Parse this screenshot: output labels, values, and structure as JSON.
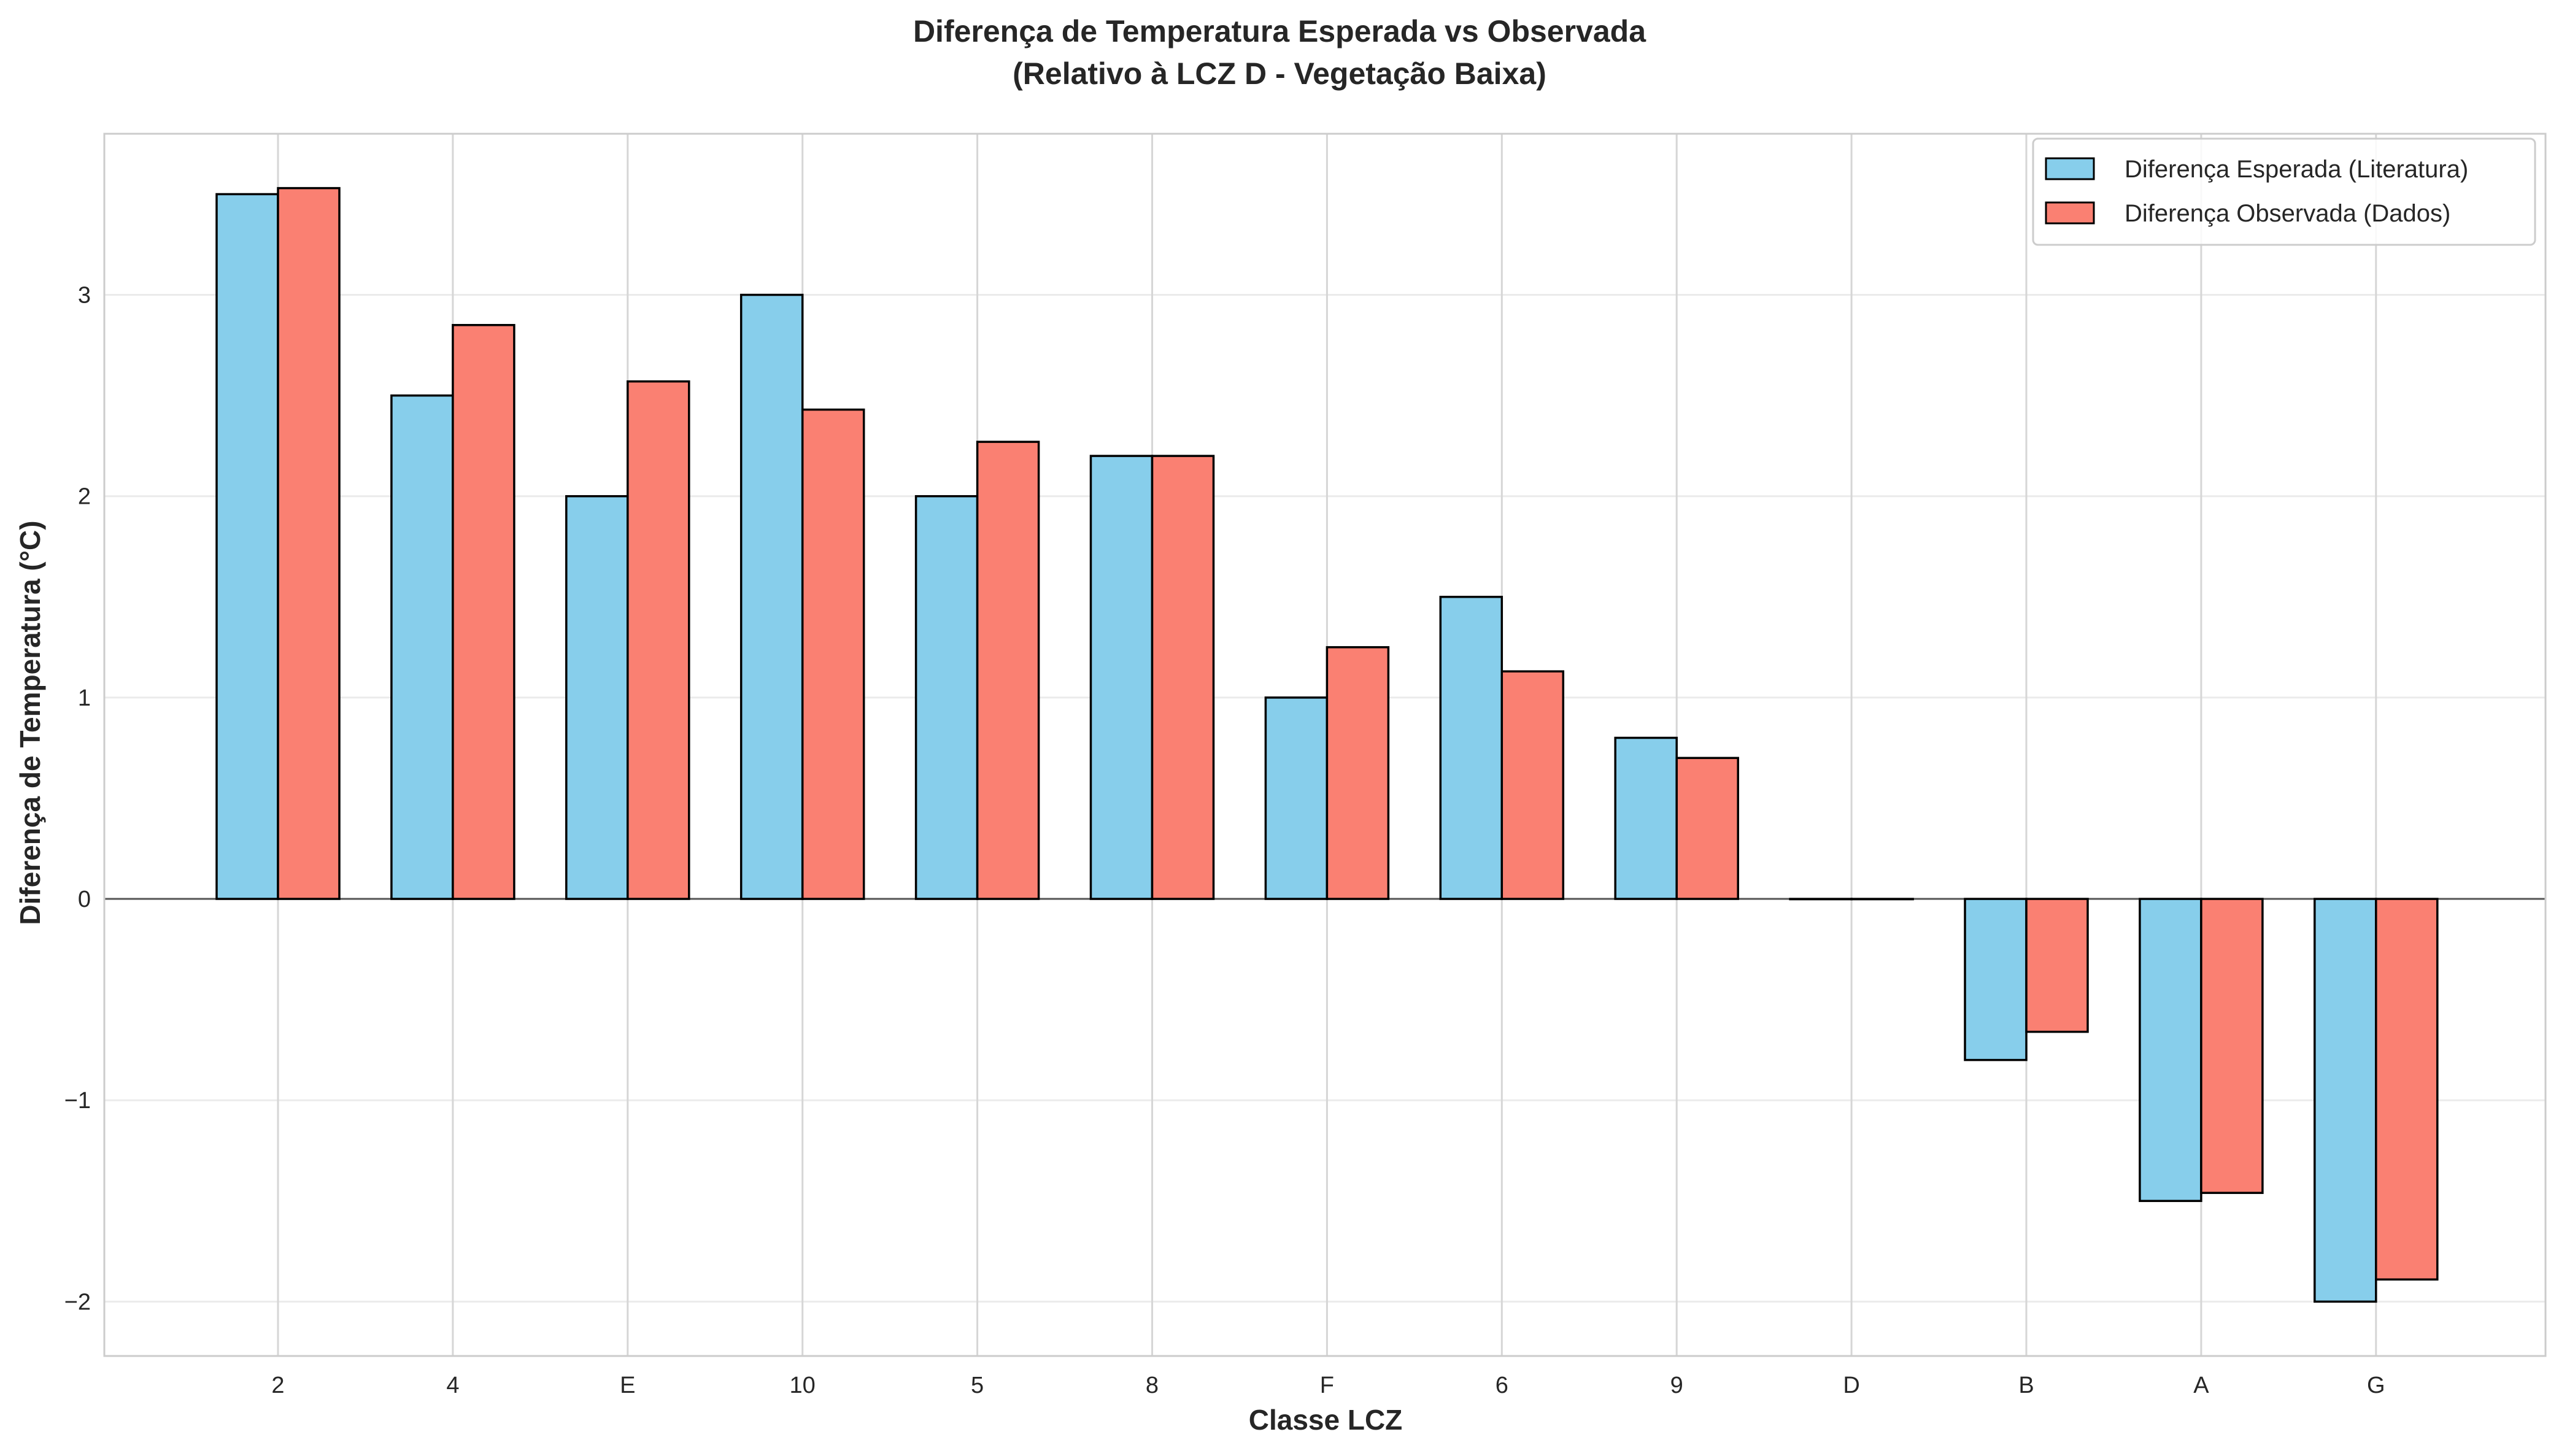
{
  "chart_data": {
    "type": "bar",
    "title": "Diferença de Temperatura Esperada vs Observada",
    "subtitle": "(Relativo à LCZ D - Vegetação Baixa)",
    "xlabel": "Classe LCZ",
    "ylabel": "Diferença de Temperatura (°C)",
    "categories": [
      "2",
      "4",
      "E",
      "10",
      "5",
      "8",
      "F",
      "6",
      "9",
      "D",
      "B",
      "A",
      "G"
    ],
    "series": [
      {
        "name": "Diferença Esperada (Literatura)",
        "color": "#87CEEB",
        "values": [
          3.5,
          2.5,
          2.0,
          3.0,
          2.0,
          2.2,
          1.0,
          1.5,
          0.8,
          0.0,
          -0.8,
          -1.5,
          -2.0
        ]
      },
      {
        "name": "Diferença Observada (Dados)",
        "color": "#FA8072",
        "values": [
          3.53,
          2.85,
          2.57,
          2.43,
          2.27,
          2.2,
          1.25,
          1.13,
          0.7,
          0.0,
          -0.66,
          -1.46,
          -1.89
        ]
      }
    ],
    "ylim": [
      -2.27,
      3.8
    ],
    "yticks": [
      -2,
      -1,
      0,
      1,
      2,
      3
    ],
    "ytick_labels": [
      "−2",
      "−1",
      "0",
      "1",
      "2",
      "3"
    ],
    "grid": true,
    "legend_position": "top-right"
  }
}
